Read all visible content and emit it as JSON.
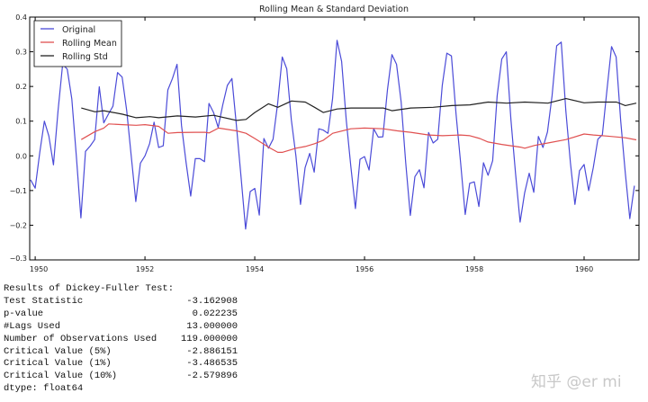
{
  "chart_data": {
    "type": "line",
    "title": "Rolling Mean & Standard Deviation",
    "xlabel": "",
    "ylabel": "",
    "xlim": [
      1949.9,
      1961.0
    ],
    "ylim": [
      -0.3,
      0.4
    ],
    "xticks": [
      "1950",
      "1952",
      "1954",
      "1956",
      "1958",
      "1960"
    ],
    "yticks": [
      "0.4",
      "0.3",
      "0.2",
      "0.1",
      "0.0",
      "−0.1",
      "−0.2",
      "−0.3"
    ],
    "grid": false,
    "legend_position": "top-left",
    "series": [
      {
        "name": "Original",
        "color": "#4b4bd8",
        "start": "1949-12",
        "frequency": "monthly",
        "values": [
          -0.069,
          -0.093,
          0.01,
          0.1,
          0.057,
          -0.026,
          0.13,
          0.264,
          0.25,
          0.164,
          0.0,
          -0.179,
          0.013,
          0.028,
          0.047,
          0.199,
          0.095,
          0.12,
          0.143,
          0.24,
          0.227,
          0.13,
          0.0,
          -0.132,
          -0.021,
          0.0,
          0.035,
          0.097,
          0.024,
          0.029,
          0.19,
          0.223,
          0.264,
          0.087,
          -0.02,
          -0.116,
          -0.008,
          -0.008,
          -0.017,
          0.151,
          0.125,
          0.082,
          0.147,
          0.203,
          0.223,
          0.087,
          -0.06,
          -0.211,
          -0.103,
          -0.094,
          -0.171,
          0.05,
          0.022,
          0.048,
          0.151,
          0.285,
          0.251,
          0.104,
          0.0,
          -0.14,
          -0.034,
          0.007,
          -0.047,
          0.078,
          0.074,
          0.065,
          0.164,
          0.333,
          0.272,
          0.104,
          -0.03,
          -0.152,
          -0.01,
          -0.002,
          -0.041,
          0.078,
          0.054,
          0.055,
          0.19,
          0.292,
          0.264,
          0.156,
          -0.02,
          -0.172,
          -0.06,
          -0.04,
          -0.092,
          0.067,
          0.037,
          0.048,
          0.203,
          0.296,
          0.288,
          0.121,
          -0.02,
          -0.169,
          -0.079,
          -0.075,
          -0.146,
          -0.02,
          -0.056,
          -0.014,
          0.173,
          0.279,
          0.3,
          0.104,
          -0.05,
          -0.191,
          -0.107,
          -0.05,
          -0.105,
          0.056,
          0.024,
          0.069,
          0.173,
          0.317,
          0.328,
          0.13,
          -0.02,
          -0.14,
          -0.043,
          -0.025,
          -0.1,
          -0.034,
          0.048,
          0.061,
          0.19,
          0.315,
          0.285,
          0.1,
          -0.05,
          -0.181,
          -0.086
        ]
      },
      {
        "name": "Rolling Mean",
        "color": "#e05050",
        "points": [
          [
            1950.84,
            0.047
          ],
          [
            1951.09,
            0.07
          ],
          [
            1951.25,
            0.08
          ],
          [
            1951.34,
            0.092
          ],
          [
            1951.59,
            0.09
          ],
          [
            1951.84,
            0.088
          ],
          [
            1952.0,
            0.09
          ],
          [
            1952.25,
            0.085
          ],
          [
            1952.42,
            0.065
          ],
          [
            1952.59,
            0.067
          ],
          [
            1952.92,
            0.068
          ],
          [
            1953.09,
            0.068
          ],
          [
            1953.17,
            0.066
          ],
          [
            1953.34,
            0.08
          ],
          [
            1953.67,
            0.072
          ],
          [
            1953.84,
            0.065
          ],
          [
            1954.0,
            0.05
          ],
          [
            1954.25,
            0.025
          ],
          [
            1954.42,
            0.01
          ],
          [
            1954.5,
            0.01
          ],
          [
            1954.75,
            0.022
          ],
          [
            1954.92,
            0.027
          ],
          [
            1955.09,
            0.035
          ],
          [
            1955.25,
            0.045
          ],
          [
            1955.42,
            0.065
          ],
          [
            1955.75,
            0.078
          ],
          [
            1956.0,
            0.08
          ],
          [
            1956.34,
            0.078
          ],
          [
            1956.6,
            0.072
          ],
          [
            1956.84,
            0.068
          ],
          [
            1957.17,
            0.06
          ],
          [
            1957.42,
            0.058
          ],
          [
            1957.75,
            0.06
          ],
          [
            1957.92,
            0.058
          ],
          [
            1958.1,
            0.05
          ],
          [
            1958.25,
            0.04
          ],
          [
            1958.5,
            0.033
          ],
          [
            1958.84,
            0.025
          ],
          [
            1958.92,
            0.022
          ],
          [
            1959.1,
            0.03
          ],
          [
            1959.34,
            0.037
          ],
          [
            1959.67,
            0.047
          ],
          [
            1960.0,
            0.063
          ],
          [
            1960.17,
            0.06
          ],
          [
            1960.42,
            0.057
          ],
          [
            1960.75,
            0.052
          ],
          [
            1960.95,
            0.046
          ]
        ]
      },
      {
        "name": "Rolling Std",
        "color": "#222222",
        "points": [
          [
            1950.84,
            0.138
          ],
          [
            1951.09,
            0.127
          ],
          [
            1951.25,
            0.13
          ],
          [
            1951.59,
            0.12
          ],
          [
            1951.84,
            0.11
          ],
          [
            1952.09,
            0.113
          ],
          [
            1952.25,
            0.11
          ],
          [
            1952.59,
            0.115
          ],
          [
            1952.92,
            0.112
          ],
          [
            1953.25,
            0.117
          ],
          [
            1953.67,
            0.102
          ],
          [
            1953.84,
            0.105
          ],
          [
            1954.0,
            0.125
          ],
          [
            1954.25,
            0.15
          ],
          [
            1954.42,
            0.14
          ],
          [
            1954.67,
            0.158
          ],
          [
            1954.92,
            0.155
          ],
          [
            1955.09,
            0.14
          ],
          [
            1955.25,
            0.125
          ],
          [
            1955.5,
            0.135
          ],
          [
            1955.75,
            0.138
          ],
          [
            1956.34,
            0.138
          ],
          [
            1956.5,
            0.13
          ],
          [
            1956.84,
            0.138
          ],
          [
            1957.25,
            0.14
          ],
          [
            1957.59,
            0.145
          ],
          [
            1957.92,
            0.147
          ],
          [
            1958.25,
            0.155
          ],
          [
            1958.59,
            0.152
          ],
          [
            1958.92,
            0.155
          ],
          [
            1959.34,
            0.152
          ],
          [
            1959.67,
            0.165
          ],
          [
            1960.0,
            0.153
          ],
          [
            1960.25,
            0.155
          ],
          [
            1960.59,
            0.155
          ],
          [
            1960.75,
            0.145
          ],
          [
            1960.95,
            0.152
          ]
        ]
      }
    ]
  },
  "results": {
    "heading": "Results of Dickey-Fuller Test:",
    "rows": [
      {
        "label": "Test Statistic",
        "value": "-3.162908"
      },
      {
        "label": "p-value",
        "value": "0.022235"
      },
      {
        "label": "#Lags Used",
        "value": "13.000000"
      },
      {
        "label": "Number of Observations Used",
        "value": "119.000000"
      },
      {
        "label": "Critical Value (5%)",
        "value": "-2.886151"
      },
      {
        "label": "Critical Value (1%)",
        "value": "-3.486535"
      },
      {
        "label": "Critical Value (10%)",
        "value": "-2.579896"
      }
    ],
    "dtype": "dtype: float64"
  },
  "watermark": "知乎 @er mi"
}
